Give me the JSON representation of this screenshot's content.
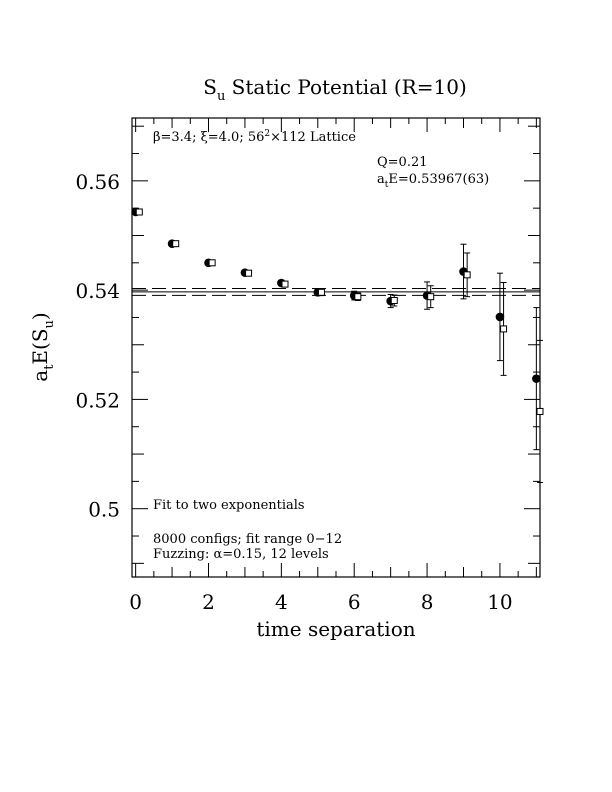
{
  "chart_data": {
    "type": "scatter",
    "title_main": "S",
    "title_sub": "u",
    "title_rest": " Static Potential (R=10)",
    "xlabel": "time separation",
    "ylabel_a": "a",
    "ylabel_t": "t",
    "ylabel_mid": "E(S",
    "ylabel_u": "u",
    "ylabel_end": ")",
    "xlim": [
      -0.1,
      11.1
    ],
    "ylim": [
      0.4875,
      0.5715
    ],
    "x_ticks": [
      0,
      2,
      4,
      6,
      8,
      10
    ],
    "x_tick_labels": [
      "0",
      "2",
      "4",
      "6",
      "8",
      "10"
    ],
    "y_ticks": [
      0.5,
      0.52,
      0.54,
      0.56
    ],
    "y_tick_labels": [
      "0.5",
      "0.52",
      "0.54",
      "0.56"
    ],
    "annotations": {
      "lattice_prefix": "β=3.4; ξ=4.0; 56",
      "lattice_sup": "2",
      "lattice_suffix": "×112 Lattice",
      "q_value": "Q=0.21",
      "energy_a": "a",
      "energy_t": "t",
      "energy_rest": "E=0.53967(63)",
      "fit_label": "Fit to two exponentials",
      "configs": "8000 configs; fit range 0−12",
      "fuzzing": "Fuzzing: α=0.15, 12 levels"
    },
    "fit": {
      "value": 0.53967,
      "error": 0.00063,
      "x_range": [
        -0.1,
        11.1
      ]
    },
    "series": [
      {
        "marker": "filled-circle",
        "x": [
          0,
          1,
          2,
          3,
          4,
          5,
          6,
          7,
          8,
          9,
          10,
          11
        ],
        "y": [
          0.5543,
          0.5485,
          0.545,
          0.5432,
          0.5413,
          0.5396,
          0.539,
          0.538,
          0.539,
          0.5434,
          0.5351,
          0.5238
        ],
        "err": [
          0.0002,
          0.0003,
          0.0003,
          0.0004,
          0.0005,
          0.0006,
          0.0008,
          0.0012,
          0.0025,
          0.005,
          0.008,
          0.013
        ]
      },
      {
        "marker": "open-square",
        "x": [
          0.1,
          1.1,
          2.1,
          3.1,
          4.1,
          5.1,
          6.1,
          7.1,
          8.1,
          9.1,
          10.1,
          11.1
        ],
        "y": [
          0.5543,
          0.5485,
          0.545,
          0.5431,
          0.5411,
          0.5396,
          0.5388,
          0.5381,
          0.5388,
          0.5428,
          0.5329,
          0.5178
        ],
        "err": [
          0.0002,
          0.0003,
          0.0003,
          0.0004,
          0.0005,
          0.0006,
          0.0007,
          0.001,
          0.002,
          0.004,
          0.0085,
          0.013
        ]
      }
    ]
  }
}
